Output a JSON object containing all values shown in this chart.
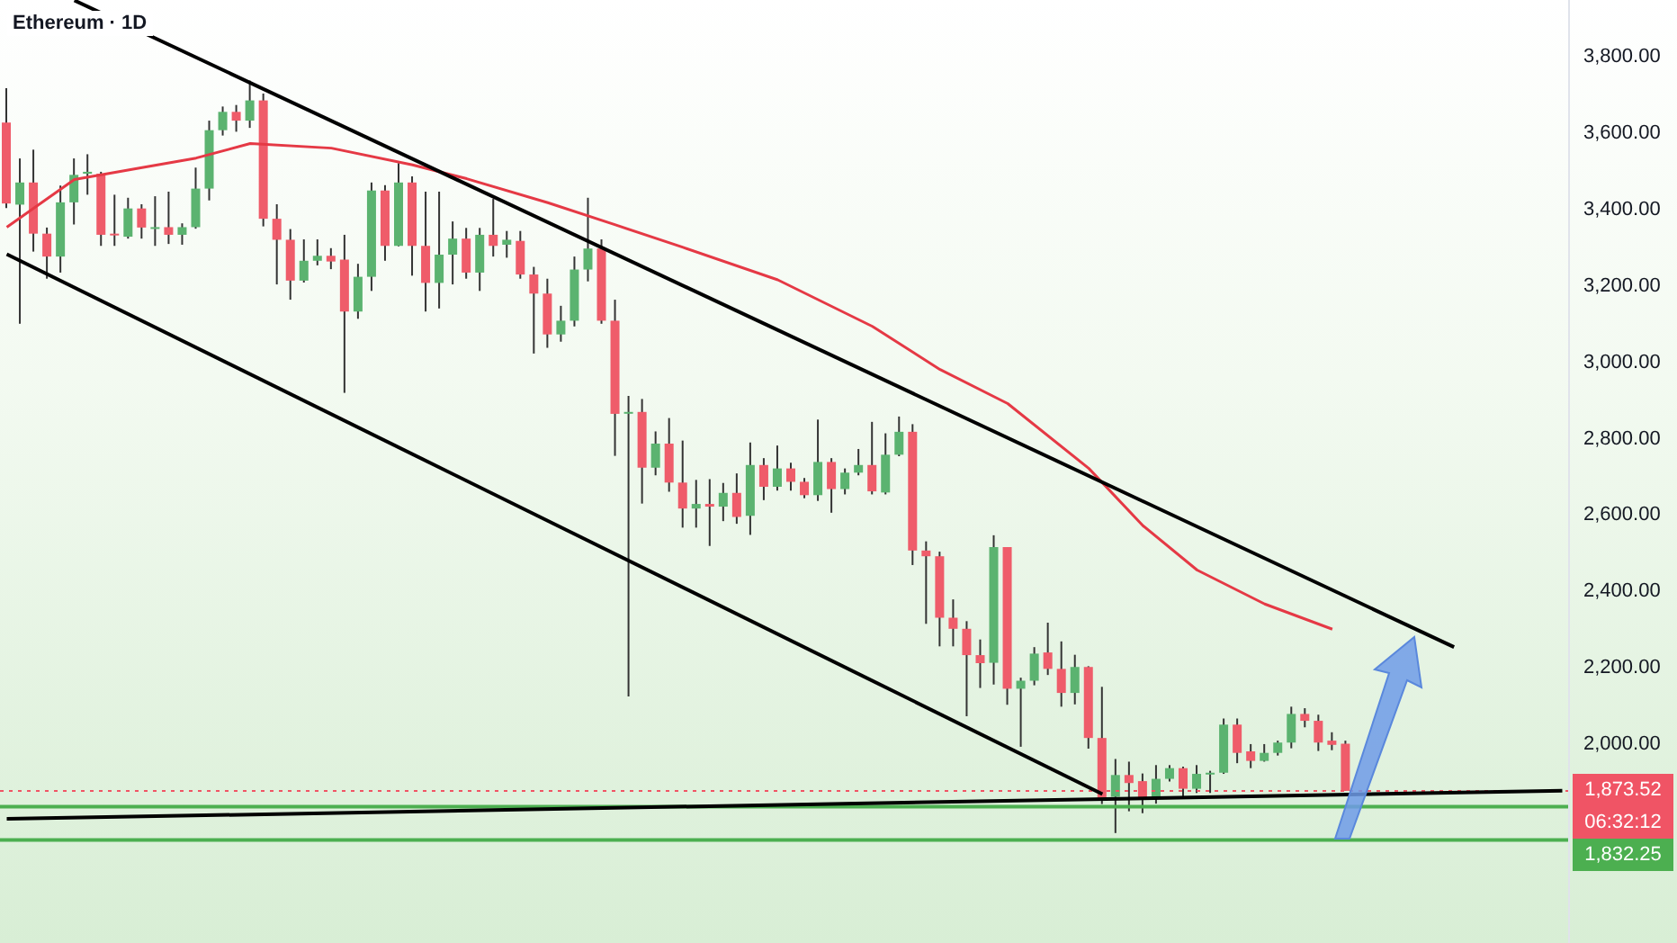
{
  "chart_data": {
    "type": "candlestick",
    "title": "Ethereum · 1D",
    "tick_labels": "y",
    "ylim": [
      1475,
      3945
    ],
    "yticks": [
      {
        "value": 2000,
        "label": "2,000.00"
      },
      {
        "value": 2200,
        "label": "2,200.00"
      },
      {
        "value": 2400,
        "label": "2,400.00"
      },
      {
        "value": 2600,
        "label": "2,600.00"
      },
      {
        "value": 2800,
        "label": "2,800.00"
      },
      {
        "value": 3000,
        "label": "3,000.00"
      },
      {
        "value": 3200,
        "label": "3,200.00"
      },
      {
        "value": 3400,
        "label": "3,400.00"
      },
      {
        "value": 3600,
        "label": "3,600.00"
      },
      {
        "value": 3800,
        "label": "3,800.00"
      }
    ],
    "categories": [
      null,
      null,
      null,
      null,
      null,
      null,
      null,
      null,
      null,
      null,
      null,
      null,
      null,
      null,
      null,
      null,
      null,
      null,
      null,
      null,
      null,
      null,
      null,
      null,
      null,
      null,
      null,
      null,
      null,
      null,
      null,
      null,
      null,
      null,
      null,
      null,
      null,
      null,
      null,
      null,
      null,
      null,
      null,
      null,
      null,
      null,
      null,
      null,
      null,
      null,
      null,
      null,
      null,
      null,
      null,
      null,
      null,
      null,
      null,
      null,
      null,
      null,
      null,
      null,
      null,
      null,
      null,
      null,
      null,
      null,
      null,
      null,
      null,
      null,
      null,
      null,
      null,
      null,
      null,
      null,
      null,
      null,
      null,
      null,
      null,
      null,
      null,
      null,
      null,
      null,
      null,
      null,
      null,
      null,
      null,
      null,
      null,
      null,
      null,
      null,
      null,
      null,
      null,
      null,
      null,
      null,
      null,
      null,
      null,
      null,
      null,
      null,
      null,
      null,
      null,
      null
    ],
    "ohlc": [
      [
        3624,
        3714,
        3400,
        3412
      ],
      [
        3409,
        3530,
        3097,
        3467
      ],
      [
        3467,
        3553,
        3286,
        3333
      ],
      [
        3333,
        3349,
        3215,
        3273
      ],
      [
        3273,
        3459,
        3231,
        3415
      ],
      [
        3415,
        3530,
        3357,
        3487
      ],
      [
        3490,
        3541,
        3435,
        3495
      ],
      [
        3490,
        3495,
        3301,
        3330
      ],
      [
        3333,
        3435,
        3301,
        3330
      ],
      [
        3325,
        3427,
        3320,
        3399
      ],
      [
        3399,
        3410,
        3320,
        3349
      ],
      [
        3350,
        3431,
        3301,
        3350
      ],
      [
        3350,
        3443,
        3306,
        3330
      ],
      [
        3330,
        3360,
        3304,
        3350
      ],
      [
        3350,
        3506,
        3346,
        3451
      ],
      [
        3451,
        3629,
        3420,
        3604
      ],
      [
        3604,
        3666,
        3590,
        3652
      ],
      [
        3652,
        3670,
        3600,
        3629
      ],
      [
        3629,
        3734,
        3610,
        3682
      ],
      [
        3682,
        3700,
        3352,
        3372
      ],
      [
        3372,
        3410,
        3200,
        3317
      ],
      [
        3317,
        3345,
        3160,
        3210
      ],
      [
        3210,
        3318,
        3205,
        3262
      ],
      [
        3262,
        3318,
        3250,
        3275
      ],
      [
        3275,
        3295,
        3240,
        3260
      ],
      [
        3265,
        3330,
        2916,
        3129
      ],
      [
        3129,
        3254,
        3110,
        3220
      ],
      [
        3220,
        3467,
        3183,
        3446
      ],
      [
        3446,
        3460,
        3262,
        3301
      ],
      [
        3301,
        3518,
        3300,
        3467
      ],
      [
        3467,
        3483,
        3223,
        3301
      ],
      [
        3301,
        3443,
        3129,
        3204
      ],
      [
        3204,
        3443,
        3137,
        3278
      ],
      [
        3278,
        3365,
        3200,
        3320
      ],
      [
        3320,
        3348,
        3215,
        3231
      ],
      [
        3231,
        3348,
        3183,
        3330
      ],
      [
        3330,
        3424,
        3273,
        3301
      ],
      [
        3304,
        3340,
        3270,
        3317
      ],
      [
        3314,
        3340,
        3215,
        3226
      ],
      [
        3226,
        3246,
        3019,
        3176
      ],
      [
        3176,
        3215,
        3034,
        3069
      ],
      [
        3069,
        3144,
        3050,
        3105
      ],
      [
        3105,
        3273,
        3090,
        3239
      ],
      [
        3239,
        3427,
        3208,
        3294
      ],
      [
        3294,
        3318,
        3097,
        3105
      ],
      [
        3105,
        3160,
        2751,
        2861
      ],
      [
        2866,
        2908,
        2121,
        2866
      ],
      [
        2866,
        2900,
        2626,
        2720
      ],
      [
        2720,
        2815,
        2700,
        2783
      ],
      [
        2783,
        2850,
        2657,
        2681
      ],
      [
        2681,
        2791,
        2563,
        2613
      ],
      [
        2613,
        2688,
        2563,
        2625
      ],
      [
        2625,
        2690,
        2515,
        2618
      ],
      [
        2618,
        2680,
        2580,
        2654
      ],
      [
        2654,
        2705,
        2573,
        2591
      ],
      [
        2594,
        2786,
        2544,
        2727
      ],
      [
        2727,
        2745,
        2635,
        2670
      ],
      [
        2670,
        2778,
        2660,
        2718
      ],
      [
        2718,
        2733,
        2660,
        2683
      ],
      [
        2683,
        2693,
        2640,
        2648
      ],
      [
        2648,
        2846,
        2633,
        2735
      ],
      [
        2735,
        2745,
        2602,
        2664
      ],
      [
        2664,
        2718,
        2650,
        2707
      ],
      [
        2707,
        2769,
        2700,
        2727
      ],
      [
        2727,
        2840,
        2650,
        2658
      ],
      [
        2655,
        2810,
        2650,
        2754
      ],
      [
        2754,
        2854,
        2750,
        2814
      ],
      [
        2814,
        2834,
        2465,
        2503
      ],
      [
        2503,
        2527,
        2311,
        2488
      ],
      [
        2488,
        2500,
        2252,
        2327
      ],
      [
        2327,
        2375,
        2252,
        2298
      ],
      [
        2298,
        2318,
        2069,
        2229
      ],
      [
        2229,
        2270,
        2143,
        2208
      ],
      [
        2209,
        2543,
        2152,
        2512
      ],
      [
        2512,
        2512,
        2099,
        2141
      ],
      [
        2141,
        2170,
        1989,
        2162
      ],
      [
        2162,
        2250,
        2150,
        2233
      ],
      [
        2236,
        2314,
        2177,
        2193
      ],
      [
        2193,
        2265,
        2094,
        2130
      ],
      [
        2130,
        2230,
        2100,
        2198
      ],
      [
        2198,
        2200,
        1984,
        2012
      ],
      [
        2012,
        2146,
        1839,
        1855
      ],
      [
        1858,
        1957,
        1763,
        1915
      ],
      [
        1915,
        1950,
        1820,
        1894
      ],
      [
        1899,
        1919,
        1815,
        1852
      ],
      [
        1852,
        1941,
        1840,
        1905
      ],
      [
        1905,
        1941,
        1898,
        1933
      ],
      [
        1933,
        1937,
        1852,
        1879
      ],
      [
        1879,
        1941,
        1868,
        1918
      ],
      [
        1918,
        1926,
        1868,
        1921
      ],
      [
        1921,
        2063,
        1918,
        2047
      ],
      [
        2047,
        2063,
        1946,
        1973
      ],
      [
        1977,
        1996,
        1933,
        1952
      ],
      [
        1952,
        1996,
        1950,
        1973
      ],
      [
        1973,
        2005,
        1966,
        2000
      ],
      [
        2000,
        2094,
        1985,
        2075
      ],
      [
        2075,
        2090,
        2040,
        2057
      ],
      [
        2057,
        2073,
        1978,
        2000
      ],
      [
        2005,
        2027,
        1980,
        1994
      ],
      [
        1997,
        2005,
        1873.52,
        1873.52
      ],
      null,
      null,
      null,
      null,
      null,
      null,
      null,
      null,
      null,
      null,
      null,
      null,
      null,
      null,
      null,
      null
    ],
    "series": [
      {
        "type": "line",
        "color": "#e53945",
        "line_style": "solid",
        "values": [
          3350,
          null,
          null,
          null,
          null,
          3475,
          null,
          null,
          null,
          null,
          3506,
          null,
          null,
          null,
          3531,
          null,
          null,
          null,
          3569,
          null,
          null,
          null,
          null,
          null,
          3557,
          null,
          null,
          null,
          null,
          null,
          3513,
          null,
          null,
          null,
          3477,
          null,
          null,
          null,
          null,
          null,
          3414,
          null,
          null,
          null,
          null,
          3356,
          null,
          null,
          null,
          null,
          3297,
          null,
          null,
          null,
          null,
          null,
          null,
          3212,
          null,
          null,
          null,
          null,
          null,
          null,
          3090,
          null,
          null,
          null,
          null,
          2977,
          null,
          null,
          null,
          null,
          2888,
          null,
          null,
          null,
          null,
          null,
          2718,
          null,
          null,
          null,
          2568,
          null,
          null,
          null,
          2452,
          null,
          null,
          null,
          null,
          2363,
          null,
          null,
          null,
          null,
          2297,
          null,
          null,
          null,
          null,
          null,
          null,
          null,
          null,
          null,
          null,
          null,
          null,
          null,
          null,
          null,
          null,
          null
        ]
      },
      {
        "type": "line",
        "color": "#000000",
        "line_style": "solid",
        "values": [
          null,
          null,
          null,
          null,
          null,
          3944,
          null,
          null,
          null,
          null,
          null,
          null,
          null,
          null,
          null,
          null,
          null,
          null,
          null,
          null,
          null,
          null,
          null,
          null,
          null,
          null,
          null,
          null,
          null,
          null,
          null,
          null,
          null,
          null,
          null,
          null,
          null,
          null,
          null,
          null,
          null,
          null,
          null,
          null,
          null,
          null,
          null,
          null,
          null,
          null,
          null,
          null,
          null,
          null,
          null,
          null,
          null,
          null,
          null,
          null,
          null,
          null,
          null,
          null,
          null,
          null,
          null,
          null,
          null,
          null,
          null,
          null,
          null,
          null,
          null,
          null,
          null,
          null,
          null,
          null,
          null,
          null,
          null,
          null,
          null,
          null,
          null,
          null,
          null,
          null,
          null,
          null,
          null,
          null,
          null,
          null,
          null,
          null,
          null,
          null,
          null,
          null,
          null,
          null,
          null,
          null,
          null,
          2250,
          null,
          null,
          null,
          null,
          null,
          null,
          null,
          null
        ]
      },
      {
        "type": "line",
        "color": "#000000",
        "line_style": "solid",
        "values": [
          3279,
          null,
          null,
          null,
          null,
          null,
          null,
          null,
          null,
          null,
          null,
          null,
          null,
          null,
          null,
          null,
          null,
          null,
          null,
          null,
          null,
          null,
          null,
          null,
          null,
          null,
          null,
          null,
          null,
          null,
          null,
          null,
          null,
          null,
          null,
          null,
          null,
          null,
          null,
          null,
          null,
          null,
          null,
          null,
          null,
          null,
          null,
          null,
          null,
          null,
          null,
          null,
          null,
          null,
          null,
          null,
          null,
          null,
          null,
          null,
          null,
          null,
          null,
          null,
          null,
          null,
          null,
          null,
          null,
          null,
          null,
          null,
          null,
          null,
          null,
          null,
          null,
          null,
          null,
          null,
          null,
          1865,
          null,
          null,
          null,
          null,
          null,
          null,
          null,
          null,
          null,
          null,
          null,
          null,
          null,
          null,
          null,
          null,
          null,
          null,
          null,
          null,
          null,
          null,
          null,
          null,
          null,
          null,
          null,
          null,
          null,
          null,
          null,
          null,
          null,
          null
        ]
      },
      {
        "type": "line",
        "color": "#000000",
        "line_style": "solid",
        "values": [
          1800,
          null,
          null,
          null,
          null,
          null,
          null,
          null,
          null,
          null,
          null,
          null,
          null,
          null,
          null,
          null,
          null,
          null,
          null,
          null,
          null,
          null,
          null,
          null,
          null,
          null,
          null,
          null,
          null,
          null,
          null,
          null,
          null,
          null,
          null,
          null,
          null,
          null,
          null,
          null,
          null,
          null,
          null,
          null,
          null,
          null,
          null,
          null,
          null,
          null,
          null,
          null,
          null,
          null,
          null,
          null,
          null,
          null,
          null,
          null,
          null,
          null,
          null,
          null,
          null,
          null,
          null,
          null,
          null,
          null,
          null,
          null,
          null,
          null,
          null,
          null,
          null,
          null,
          null,
          null,
          null,
          null,
          null,
          null,
          null,
          null,
          null,
          null,
          null,
          null,
          null,
          null,
          null,
          null,
          null,
          null,
          null,
          null,
          null,
          null,
          null,
          null,
          null,
          null,
          null,
          null,
          null,
          null,
          null,
          null,
          null,
          null,
          null,
          null,
          null,
          1874
        ]
      }
    ],
    "ref_lines": [
      {
        "axis": "y",
        "value": 1873.52,
        "label": "1,873.52",
        "color": "#f05465",
        "line_style": "dotted"
      },
      {
        "axis": "y",
        "value": 1832.25,
        "label": "1,832.25",
        "color": "#4caf50",
        "line_style": "solid"
      },
      {
        "axis": "y",
        "value": 1745,
        "label": null,
        "color": "#4caf50",
        "line_style": "solid"
      }
    ],
    "annotations": [
      "06:32:12"
    ]
  }
}
